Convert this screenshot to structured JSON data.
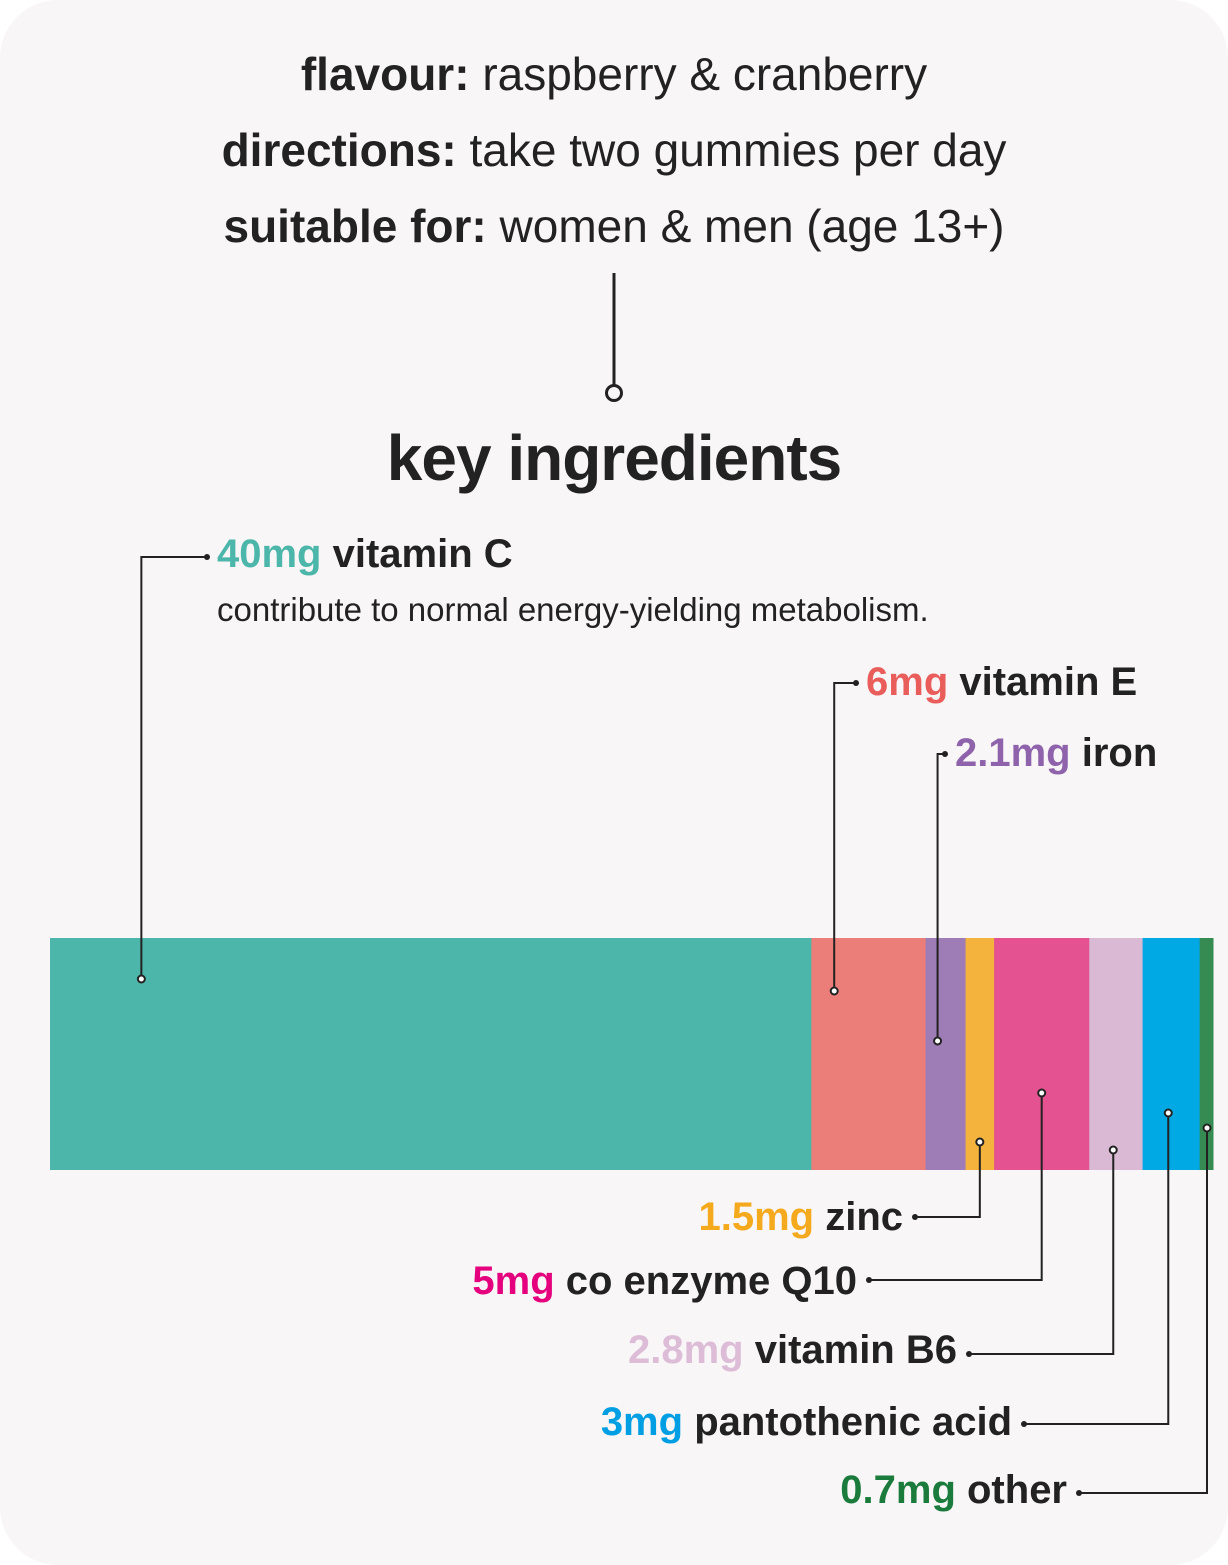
{
  "info": [
    {
      "key": "flavour:",
      "value": "raspberry & cranberry"
    },
    {
      "key": "directions:",
      "value": "take two gummies per day"
    },
    {
      "key": "suitable for:",
      "value": "women & men (age 13+)"
    }
  ],
  "section_title": "key ingredients",
  "description": "contribute to normal energy-yielding metabolism.",
  "chart_data": {
    "type": "bar",
    "orientation": "horizontal-stacked",
    "title": "key ingredients",
    "categories": [
      "vitamin C",
      "vitamin E",
      "iron",
      "zinc",
      "co enzyme Q10",
      "vitamin B6",
      "pantothenic acid",
      "other"
    ],
    "series": [
      {
        "label": "40mg",
        "name": "vitamin C",
        "value": 40,
        "unit": "mg",
        "color": "#4db6aa"
      },
      {
        "label": "6mg",
        "name": "vitamin E",
        "value": 6,
        "unit": "mg",
        "color": "#eb7e79"
      },
      {
        "label": "2.1mg",
        "name": "iron",
        "value": 2.1,
        "unit": "mg",
        "color": "#9e7cb6"
      },
      {
        "label": "1.5mg",
        "name": "zinc",
        "value": 1.5,
        "unit": "mg",
        "color": "#f4b33c"
      },
      {
        "label": "5mg",
        "name": "co enzyme Q10",
        "value": 5,
        "unit": "mg",
        "color": "#e45291"
      },
      {
        "label": "2.8mg",
        "name": "vitamin B6",
        "value": 2.8,
        "unit": "mg",
        "color": "#d9b9d3"
      },
      {
        "label": "3mg",
        "name": "pantothenic acid",
        "value": 3,
        "unit": "mg",
        "color": "#00a9e4"
      },
      {
        "label": "0.7mg",
        "name": "other",
        "value": 0.7,
        "unit": "mg",
        "color": "#358b52"
      }
    ],
    "label_colors": {
      "vitamin C": "#4db6aa",
      "vitamin E": "#e95d5b",
      "iron": "#8f63ab",
      "zinc": "#f5a91c",
      "co enzyme Q10": "#e5007d",
      "vitamin B6": "#ddbcd7",
      "pantothenic acid": "#009fe3",
      "other": "#1a7b3c"
    },
    "grid": false,
    "legend": "none"
  }
}
